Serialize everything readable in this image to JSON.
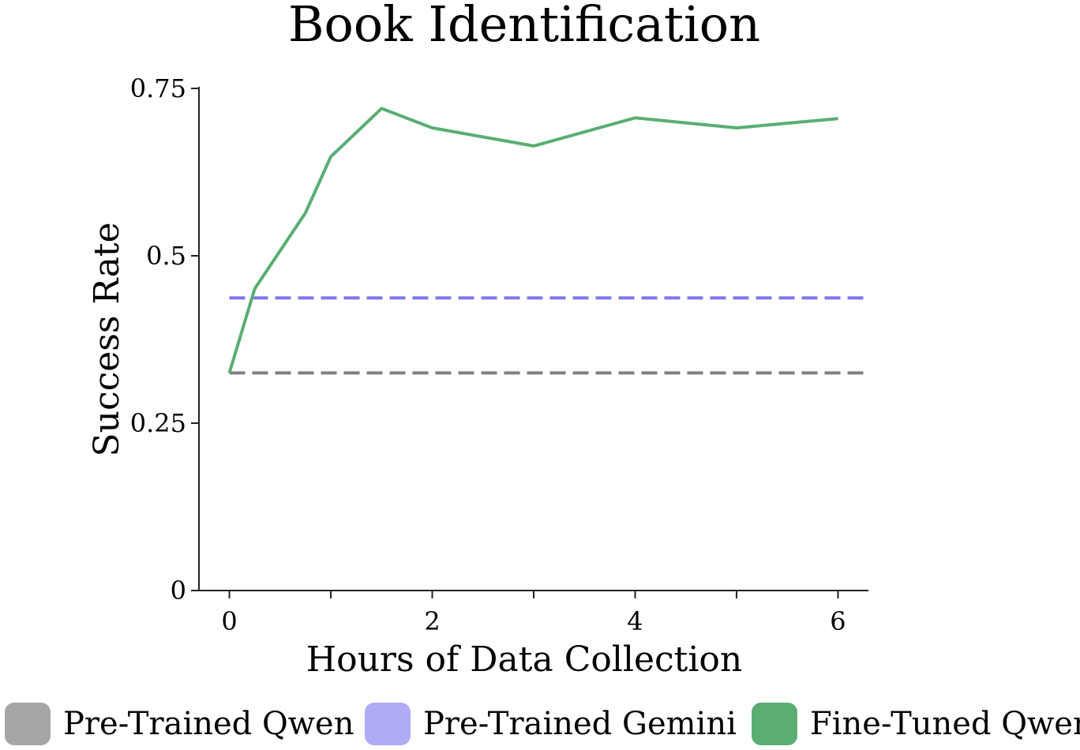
{
  "chart_data": {
    "type": "line",
    "title": "Book Identification",
    "xlabel": "Hours of Data Collection",
    "ylabel": "Success Rate",
    "xlim": [
      -0.3,
      6.3
    ],
    "ylim": [
      0,
      0.75
    ],
    "xticks": [
      0,
      1,
      2,
      3,
      4,
      5,
      6
    ],
    "xtick_labels": [
      "0",
      "",
      "2",
      "",
      "4",
      "",
      "6"
    ],
    "yticks": [
      0,
      0.25,
      0.5,
      0.75
    ],
    "ytick_labels": [
      "0",
      "0.25",
      "0.5",
      "0.75"
    ],
    "grid": false,
    "legend_position": "bottom",
    "series": [
      {
        "name": "Pre-Trained Qwen",
        "color": "#808080",
        "legend_color": "#a6a6a6",
        "style": "dashed",
        "x": [
          0,
          6.3
        ],
        "y": [
          0.325,
          0.325
        ]
      },
      {
        "name": "Pre-Trained Gemini",
        "color": "#7b78f0",
        "legend_color": "#adacf5",
        "style": "dashed",
        "x": [
          0,
          6.3
        ],
        "y": [
          0.437,
          0.437
        ]
      },
      {
        "name": "Fine-Tuned Qwen",
        "color": "#5aae73",
        "legend_color": "#5aae73",
        "style": "solid",
        "x": [
          0,
          0.25,
          0.75,
          1,
          1.5,
          2,
          3,
          4,
          5,
          6
        ],
        "y": [
          0.325,
          0.451,
          0.564,
          0.648,
          0.72,
          0.691,
          0.664,
          0.706,
          0.691,
          0.705
        ]
      }
    ]
  }
}
